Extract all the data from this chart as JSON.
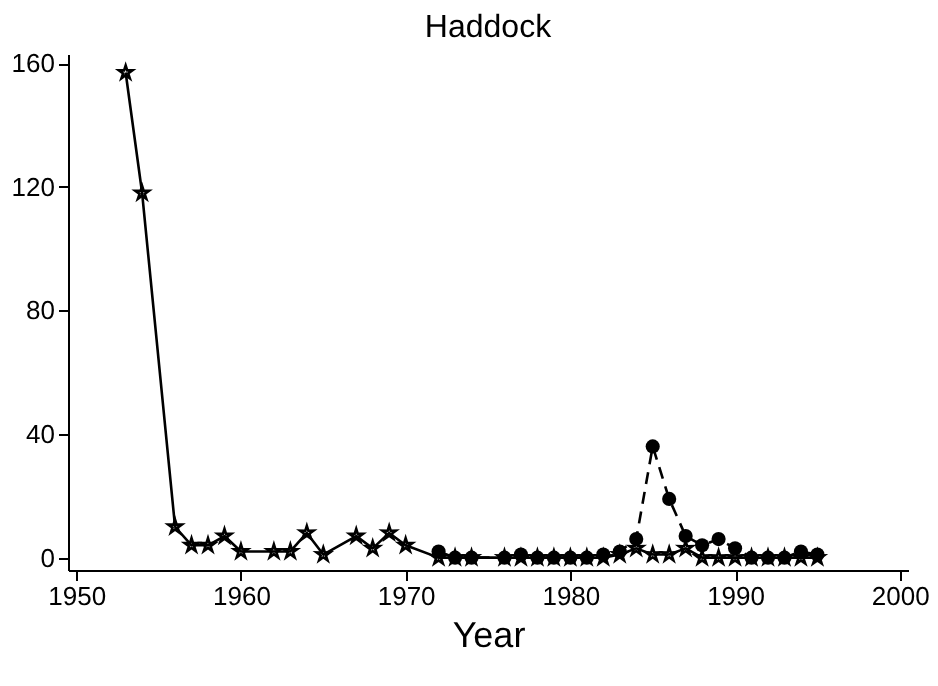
{
  "chart_data": {
    "type": "line",
    "title": "Haddock",
    "xlabel": "Year",
    "xlim": [
      1949.5,
      2000.5
    ],
    "xticks": [
      1950,
      1960,
      1970,
      1980,
      1990,
      2000
    ],
    "ylim": [
      -4,
      163
    ],
    "yticks": [
      0,
      40,
      80,
      120,
      160
    ],
    "grid": false,
    "series": [
      {
        "color": "#000000",
        "marker": "star",
        "line_style": "solid",
        "x": [
          1953,
          1954,
          1956,
          1957,
          1958,
          1959,
          1960,
          1962,
          1963,
          1964,
          1965,
          1967,
          1968,
          1969,
          1970,
          1972,
          1973,
          1974,
          1976,
          1977,
          1978,
          1979,
          1980,
          1981,
          1982,
          1983,
          1984,
          1985,
          1986,
          1987,
          1988,
          1989,
          1990,
          1991,
          1992,
          1993,
          1994,
          1995
        ],
        "values": [
          157,
          118,
          10,
          4,
          4,
          7,
          2,
          2,
          2,
          8,
          1,
          7,
          3,
          8,
          4,
          0,
          0,
          0,
          0,
          0,
          0,
          0,
          0,
          0,
          0,
          1,
          3,
          1,
          1,
          3,
          0,
          0,
          0,
          0,
          0,
          0,
          0,
          0
        ]
      },
      {
        "color": "#000000",
        "marker": "circle",
        "line_style": "dashed",
        "x": [
          1972,
          1973,
          1974,
          1976,
          1977,
          1978,
          1979,
          1980,
          1981,
          1982,
          1983,
          1984,
          1985,
          1986,
          1987,
          1988,
          1989,
          1990,
          1991,
          1992,
          1993,
          1994,
          1995
        ],
        "values": [
          2,
          0,
          0,
          0,
          1,
          0,
          0,
          0,
          0,
          1,
          2,
          6,
          36,
          19,
          7,
          4,
          6,
          3,
          0,
          0,
          0,
          2,
          1
        ]
      }
    ]
  }
}
